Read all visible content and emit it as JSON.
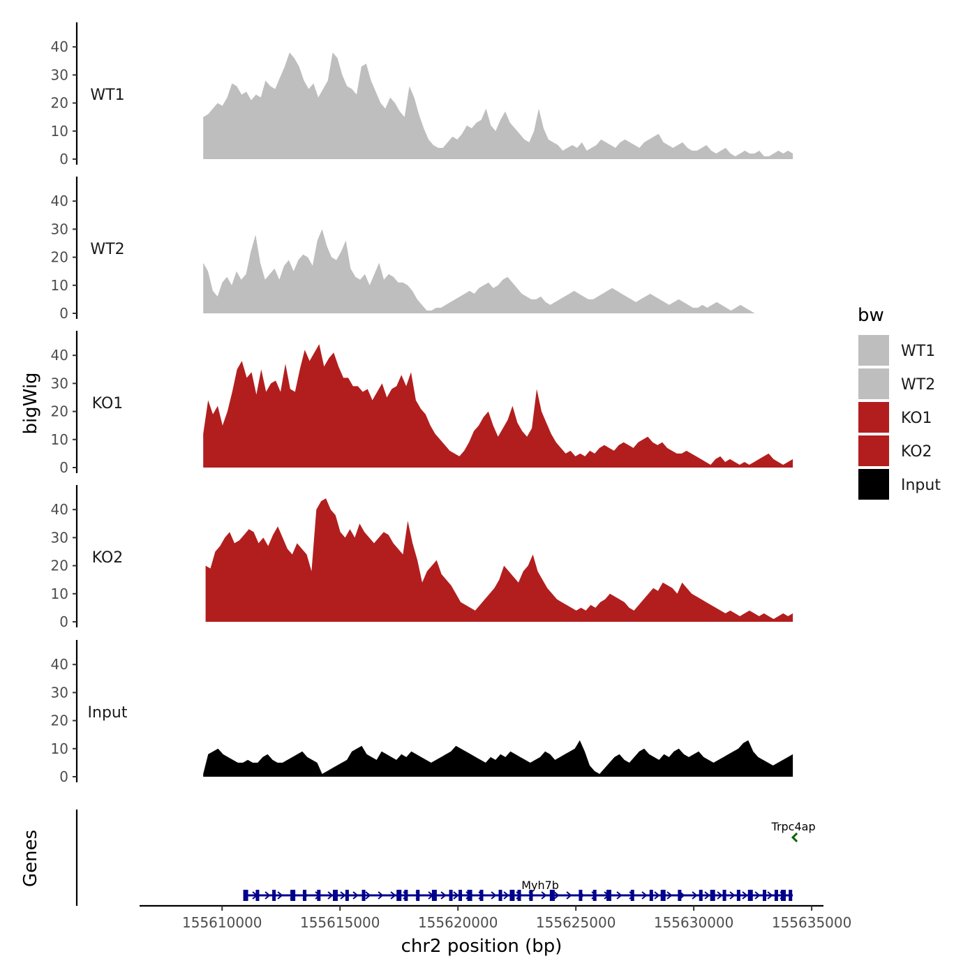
{
  "chart_data": {
    "type": "area",
    "genome": "chr2",
    "xlabel": "chr2 position (bp)",
    "ylabel": "bigWig",
    "genes_label": "Genes",
    "xlim": [
      155606500,
      155635500
    ],
    "x_ticks": [
      155610000,
      155615000,
      155620000,
      155625000,
      155630000,
      155635000
    ],
    "x_tick_labels": [
      "155610000",
      "155615000",
      "155620000",
      "155625000",
      "155630000",
      "155635000"
    ],
    "ylim": [
      0,
      50
    ],
    "y_ticks": [
      0,
      10,
      20,
      30,
      40
    ],
    "y_tick_labels": [
      "0",
      "10",
      "20",
      "30",
      "40"
    ],
    "legend": {
      "title": "bw",
      "entries": [
        {
          "label": "WT1",
          "color": "#bebebe"
        },
        {
          "label": "WT2",
          "color": "#bebebe"
        },
        {
          "label": "KO1",
          "color": "#b21e1e"
        },
        {
          "label": "KO2",
          "color": "#b21e1e"
        },
        {
          "label": "Input",
          "color": "#000000"
        }
      ]
    },
    "series": [
      {
        "name": "WT1",
        "color": "#bebebe",
        "x_start": 155609200,
        "x_end": 155634200,
        "values": [
          15,
          16,
          18,
          20,
          19,
          22,
          27,
          26,
          23,
          24,
          21,
          23,
          22,
          28,
          26,
          25,
          29,
          33,
          38,
          36,
          33,
          28,
          25,
          27,
          22,
          25,
          28,
          38,
          36,
          30,
          26,
          25,
          23,
          33,
          34,
          28,
          24,
          20,
          18,
          22,
          20,
          17,
          15,
          26,
          22,
          16,
          11,
          7,
          5,
          4,
          4,
          6,
          8,
          7,
          9,
          12,
          11,
          13,
          14,
          18,
          12,
          10,
          14,
          17,
          13,
          11,
          9,
          7,
          6,
          10,
          18,
          11,
          7,
          6,
          5,
          3,
          4,
          5,
          4,
          6,
          3,
          4,
          5,
          7,
          6,
          5,
          4,
          6,
          7,
          6,
          5,
          4,
          6,
          7,
          8,
          9,
          6,
          5,
          4,
          5,
          6,
          4,
          3,
          3,
          4,
          5,
          3,
          2,
          3,
          4,
          2,
          1,
          2,
          3,
          2,
          2,
          3,
          1,
          1,
          2,
          3,
          2,
          3,
          2
        ]
      },
      {
        "name": "WT2",
        "color": "#bebebe",
        "x_start": 155609200,
        "x_end": 155634200,
        "values": [
          18,
          15,
          8,
          6,
          11,
          13,
          10,
          15,
          12,
          14,
          22,
          28,
          18,
          12,
          14,
          16,
          12,
          17,
          19,
          15,
          19,
          21,
          20,
          17,
          26,
          30,
          24,
          20,
          19,
          22,
          26,
          16,
          13,
          12,
          14,
          10,
          14,
          18,
          12,
          14,
          13,
          11,
          11,
          10,
          8,
          5,
          3,
          1,
          1,
          2,
          2,
          3,
          4,
          5,
          6,
          7,
          8,
          7,
          9,
          10,
          11,
          9,
          10,
          12,
          13,
          11,
          9,
          7,
          6,
          5,
          5,
          6,
          4,
          3,
          4,
          5,
          6,
          7,
          8,
          7,
          6,
          5,
          5,
          6,
          7,
          8,
          9,
          8,
          7,
          6,
          5,
          4,
          5,
          6,
          7,
          6,
          5,
          4,
          3,
          4,
          5,
          4,
          3,
          2,
          2,
          3,
          2,
          3,
          4,
          3,
          2,
          1,
          2,
          3,
          2,
          1,
          0,
          0,
          0,
          0,
          0,
          0,
          0,
          0,
          0
        ]
      },
      {
        "name": "KO1",
        "color": "#b21e1e",
        "x_start": 155609200,
        "x_end": 155634200,
        "values": [
          12,
          24,
          19,
          22,
          15,
          20,
          27,
          35,
          38,
          32,
          34,
          26,
          35,
          27,
          30,
          31,
          27,
          37,
          28,
          27,
          35,
          42,
          38,
          41,
          44,
          36,
          39,
          41,
          36,
          32,
          32,
          29,
          29,
          27,
          28,
          24,
          27,
          30,
          25,
          28,
          29,
          33,
          29,
          34,
          24,
          21,
          19,
          15,
          12,
          10,
          8,
          6,
          5,
          4,
          6,
          9,
          13,
          15,
          18,
          20,
          15,
          11,
          14,
          17,
          22,
          16,
          13,
          11,
          14,
          28,
          20,
          16,
          12,
          9,
          7,
          5,
          6,
          4,
          5,
          4,
          6,
          5,
          7,
          8,
          7,
          6,
          8,
          9,
          8,
          7,
          9,
          10,
          11,
          9,
          8,
          9,
          7,
          6,
          5,
          5,
          6,
          5,
          4,
          3,
          2,
          1,
          3,
          4,
          2,
          3,
          2,
          1,
          2,
          1,
          2,
          3,
          4,
          5,
          3,
          2,
          1,
          2,
          3
        ]
      },
      {
        "name": "KO2",
        "color": "#b21e1e",
        "x_start": 155609300,
        "x_end": 155634200,
        "values": [
          20,
          19,
          25,
          27,
          30,
          32,
          28,
          29,
          31,
          33,
          32,
          28,
          30,
          27,
          31,
          34,
          30,
          26,
          24,
          28,
          26,
          24,
          18,
          40,
          43,
          44,
          40,
          38,
          32,
          30,
          33,
          30,
          35,
          32,
          30,
          28,
          30,
          32,
          31,
          28,
          26,
          24,
          36,
          28,
          22,
          14,
          18,
          20,
          22,
          17,
          15,
          13,
          10,
          7,
          6,
          5,
          4,
          6,
          8,
          10,
          12,
          15,
          20,
          18,
          16,
          14,
          18,
          20,
          24,
          18,
          15,
          12,
          10,
          8,
          7,
          6,
          5,
          4,
          5,
          4,
          6,
          5,
          7,
          8,
          10,
          9,
          8,
          7,
          5,
          4,
          6,
          8,
          10,
          12,
          11,
          14,
          13,
          12,
          10,
          14,
          12,
          10,
          9,
          8,
          7,
          6,
          5,
          4,
          3,
          4,
          3,
          2,
          3,
          4,
          3,
          2,
          3,
          2,
          1,
          2,
          3,
          2,
          3
        ]
      },
      {
        "name": "Input",
        "color": "#000000",
        "x_start": 155609200,
        "x_end": 155634200,
        "values": [
          1,
          8,
          9,
          10,
          8,
          7,
          6,
          5,
          5,
          6,
          5,
          5,
          7,
          8,
          6,
          5,
          5,
          6,
          7,
          8,
          9,
          7,
          6,
          5,
          1,
          2,
          3,
          4,
          5,
          6,
          9,
          10,
          11,
          8,
          7,
          6,
          9,
          8,
          7,
          6,
          8,
          7,
          9,
          8,
          7,
          6,
          5,
          6,
          7,
          8,
          9,
          11,
          10,
          9,
          8,
          7,
          6,
          5,
          7,
          6,
          8,
          7,
          9,
          8,
          7,
          6,
          5,
          6,
          7,
          9,
          8,
          6,
          7,
          8,
          9,
          10,
          13,
          9,
          4,
          2,
          1,
          3,
          5,
          7,
          8,
          6,
          5,
          7,
          9,
          10,
          8,
          7,
          6,
          8,
          7,
          9,
          10,
          8,
          7,
          8,
          9,
          7,
          6,
          5,
          6,
          7,
          8,
          9,
          10,
          12,
          13,
          9,
          7,
          6,
          5,
          4,
          5,
          6,
          7,
          8
        ]
      }
    ],
    "genes": [
      {
        "name": "Myh7b",
        "start": 155611000,
        "end": 155634200,
        "strand": "+",
        "color": "#00008b",
        "exons": [
          155611000,
          155611500,
          155612200,
          155613000,
          155613500,
          155614100,
          155614800,
          155615300,
          155616000,
          155617500,
          155617800,
          155618300,
          155619000,
          155619700,
          155620100,
          155620500,
          155621000,
          155621800,
          155622300,
          155622600,
          155623100,
          155624000,
          155625200,
          155625800,
          155626400,
          155627400,
          155628200,
          155628700,
          155629400,
          155630300,
          155630800,
          155631300,
          155631900,
          155632400,
          155633000,
          155633500,
          155633800,
          155634100
        ]
      },
      {
        "name": "Trpc4ap",
        "start": 155634200,
        "end": 155634300,
        "strand": "-",
        "color": "#006400",
        "exons": []
      }
    ]
  }
}
